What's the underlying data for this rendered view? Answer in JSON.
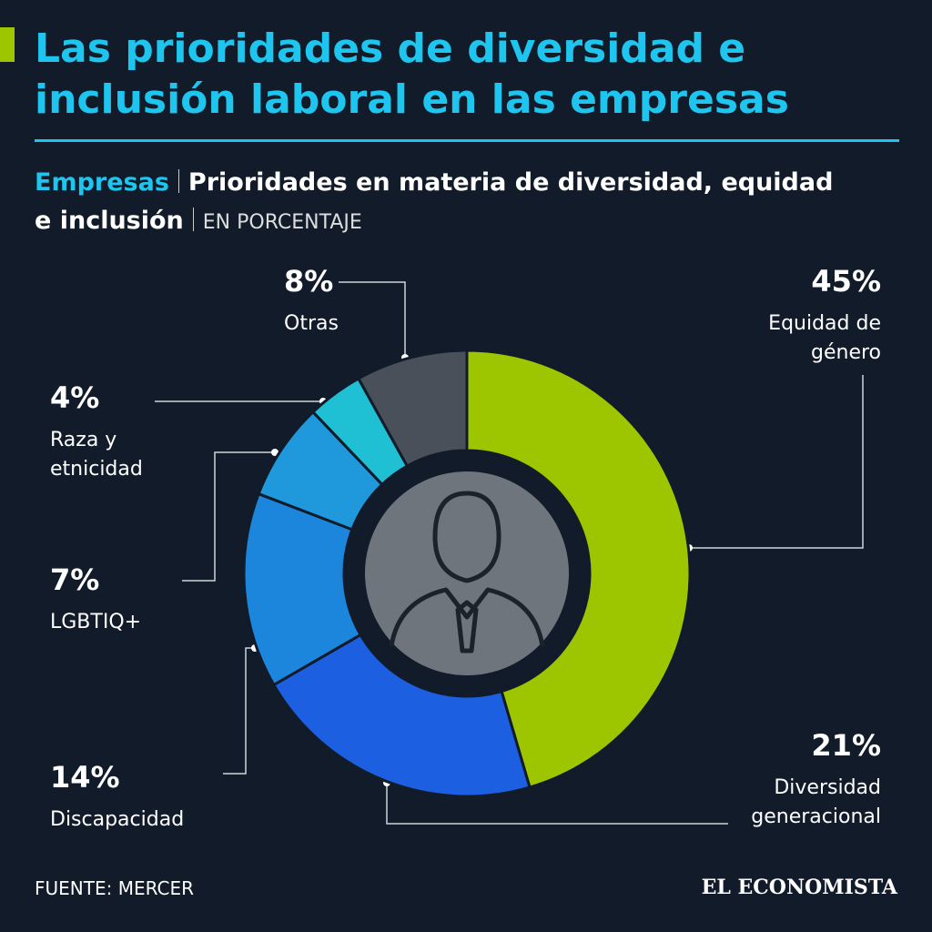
{
  "chart_data": {
    "type": "donut",
    "title": "Las prioridades de diversidad e inclusión laboral en las empresas",
    "subtitle_label": "Empresas",
    "subtitle": "Prioridades en materia de diversidad, equidad e inclusión",
    "unit_note": "EN PORCENTAJE",
    "categories": [
      "Equidad de género",
      "Diversidad generacional",
      "Discapacidad",
      "LGBTIQ+",
      "Raza y etnicidad",
      "Otras"
    ],
    "values": [
      45,
      21,
      14,
      7,
      4,
      8
    ],
    "value_labels": [
      "45%",
      "21%",
      "14%",
      "7%",
      "4%",
      "8%"
    ],
    "colors": [
      "#9dc600",
      "#1c5fe0",
      "#1c86dc",
      "#2099dc",
      "#1fc0d4",
      "#4a5059"
    ],
    "source": "FUENTE: MERCER",
    "brand": "EL ECONOMISTA"
  }
}
